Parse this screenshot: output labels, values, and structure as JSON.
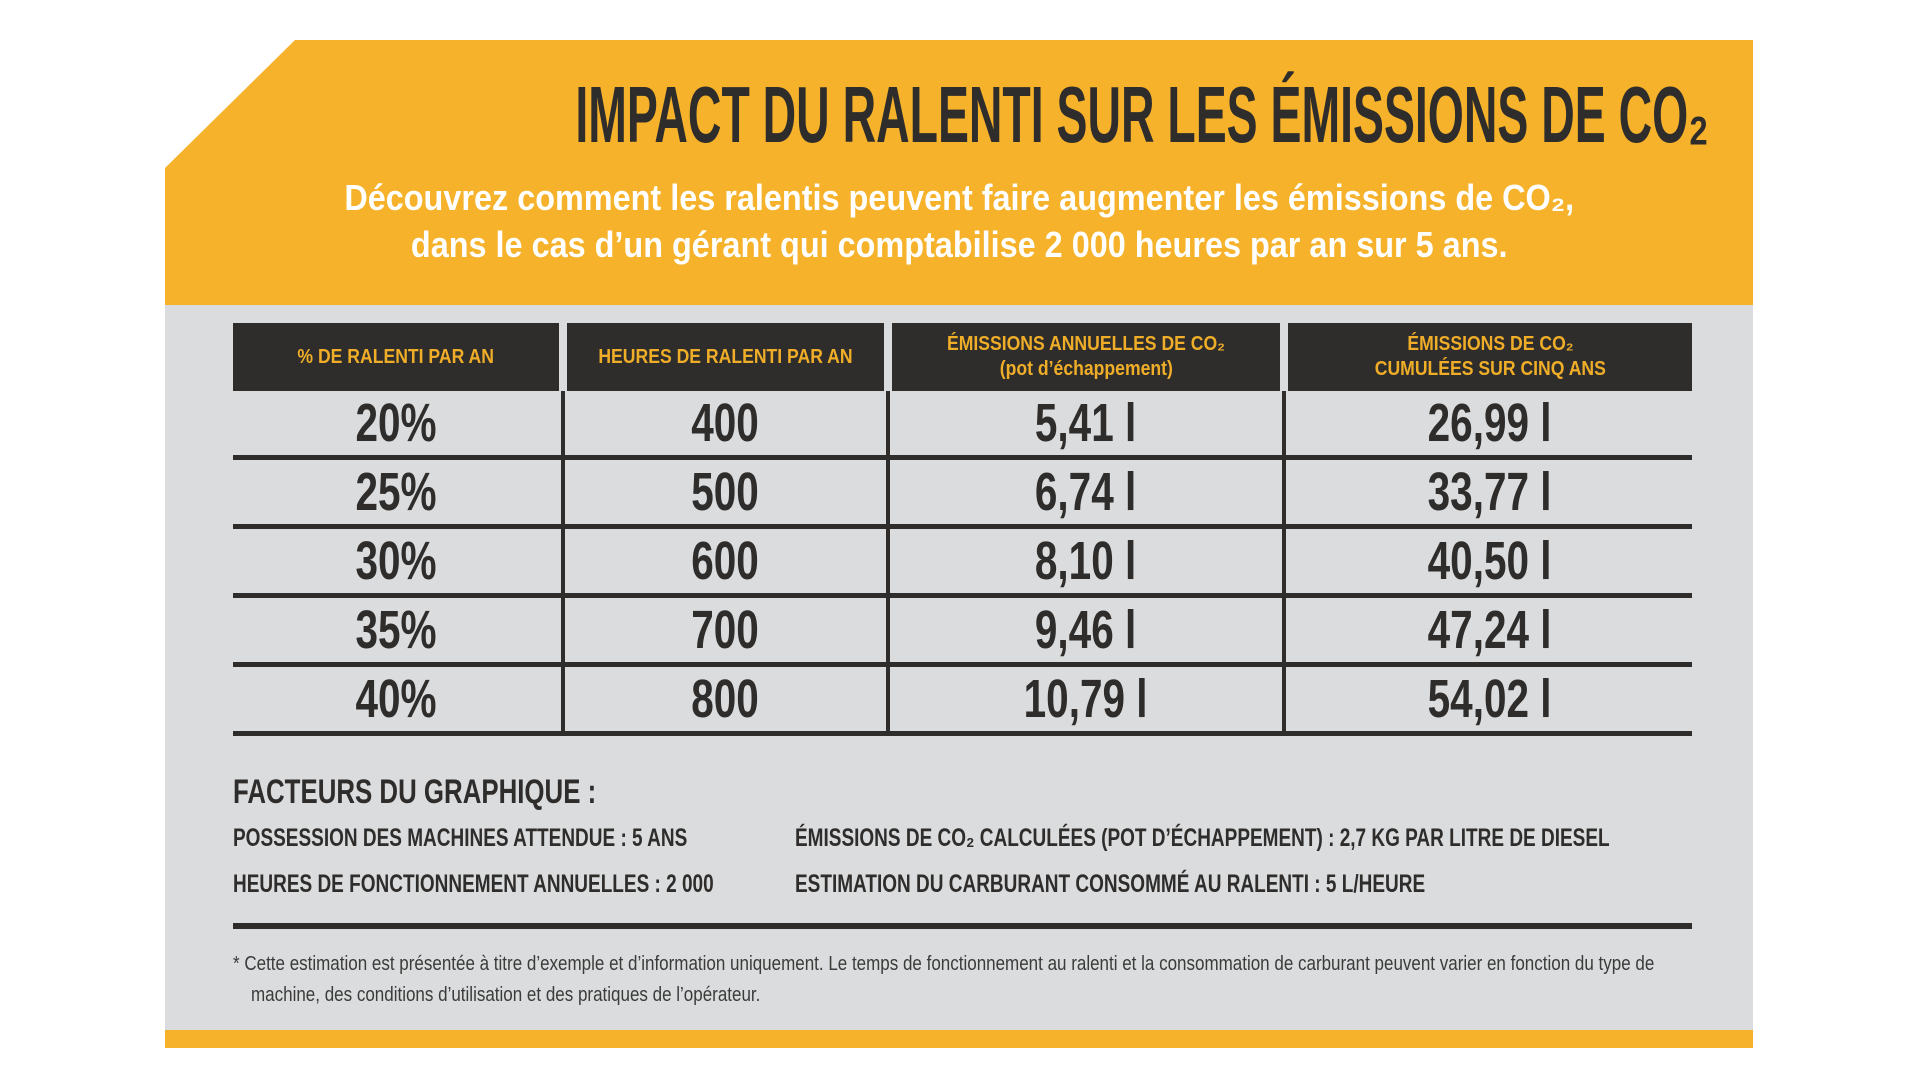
{
  "colors": {
    "brand_yellow": "#F6B22A",
    "dark_charcoal": "#2E2D2C",
    "panel_gray": "#DBDCDD",
    "header_label_yellow": "#EFAD28",
    "subtitle_white": "#FFFFFF"
  },
  "banner": {
    "title": "IMPACT DU RALENTI SUR LES ÉMISSIONS DE CO₂",
    "subtitle_line1": "Découvrez comment les ralentis peuvent faire augmenter les émissions de CO₂,",
    "subtitle_line2": "dans le cas d’un gérant qui comptabilise 2 000 heures par an sur 5 ans."
  },
  "chart_data": {
    "type": "table",
    "title": "IMPACT DU RALENTI SUR LES ÉMISSIONS DE CO₂",
    "columns": [
      {
        "line1": "% DE RALENTI PAR AN"
      },
      {
        "line1": "HEURES DE RALENTI PAR AN"
      },
      {
        "line1": "ÉMISSIONS ANNUELLES DE CO₂",
        "line2": "(pot d’échappement)"
      },
      {
        "line1": "ÉMISSIONS DE CO₂",
        "line2": "CUMULÉES SUR CINQ ANS"
      }
    ],
    "rows": [
      [
        "20%",
        "400",
        "5,41 l",
        "26,99 l"
      ],
      [
        "25%",
        "500",
        "6,74 l",
        "33,77 l"
      ],
      [
        "30%",
        "600",
        "8,10 l",
        "40,50 l"
      ],
      [
        "35%",
        "700",
        "9,46 l",
        "47,24 l"
      ],
      [
        "40%",
        "800",
        "10,79 l",
        "54,02 l"
      ]
    ]
  },
  "factors": {
    "heading": "FACTEURS DU GRAPHIQUE :",
    "left": [
      "POSSESSION DES MACHINES ATTENDUE : 5 ANS",
      "HEURES DE FONCTIONNEMENT ANNUELLES : 2 000"
    ],
    "right": [
      "ÉMISSIONS DE CO₂ CALCULÉES (POT D’ÉCHAPPEMENT) : 2,7 KG PAR LITRE DE DIESEL",
      "ESTIMATION DU CARBURANT CONSOMMÉ AU RALENTI : 5 L/HEURE"
    ]
  },
  "footnote": {
    "line1": "* Cette estimation est présentée à titre d’exemple et d’information uniquement. Le temps de fonctionnement au ralenti et la consommation de carburant peuvent varier en fonction du type de",
    "line2": "machine, des conditions d’utilisation et des pratiques de l’opérateur."
  }
}
